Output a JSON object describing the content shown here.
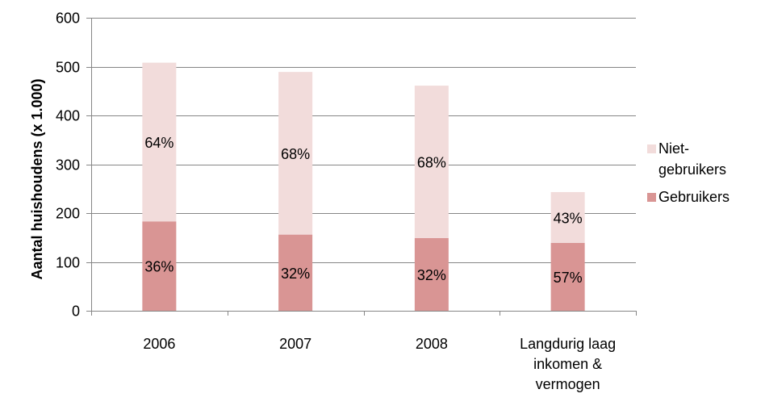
{
  "chart_data": {
    "type": "bar",
    "stacked": true,
    "title": "",
    "xlabel": "",
    "ylabel": "Aantal huishoudens (x 1.000)",
    "ylim": [
      0,
      600
    ],
    "yticks": [
      0,
      100,
      200,
      300,
      400,
      500,
      600
    ],
    "grid": true,
    "legend_position": "right",
    "categories": [
      [
        "2006"
      ],
      [
        "2007"
      ],
      [
        "2008"
      ],
      [
        "Langdurig laag",
        "inkomen &",
        "vermogen"
      ]
    ],
    "series": [
      {
        "name": "Gebruikers",
        "color": "#d99594",
        "values": [
          183,
          156,
          149,
          139
        ],
        "labels": [
          "36%",
          "32%",
          "32%",
          "57%"
        ]
      },
      {
        "name": "Niet-gebruikers",
        "legend_lines": [
          "Niet-",
          "gebruikers"
        ],
        "color": "#f2dcdb",
        "values": [
          325,
          333,
          312,
          104
        ],
        "labels": [
          "64%",
          "68%",
          "68%",
          "43%"
        ]
      }
    ],
    "legend_order": [
      "Niet-gebruikers",
      "Gebruikers"
    ]
  },
  "colors": {
    "grid": "#868686",
    "axis": "#868686",
    "text": "#000000"
  }
}
